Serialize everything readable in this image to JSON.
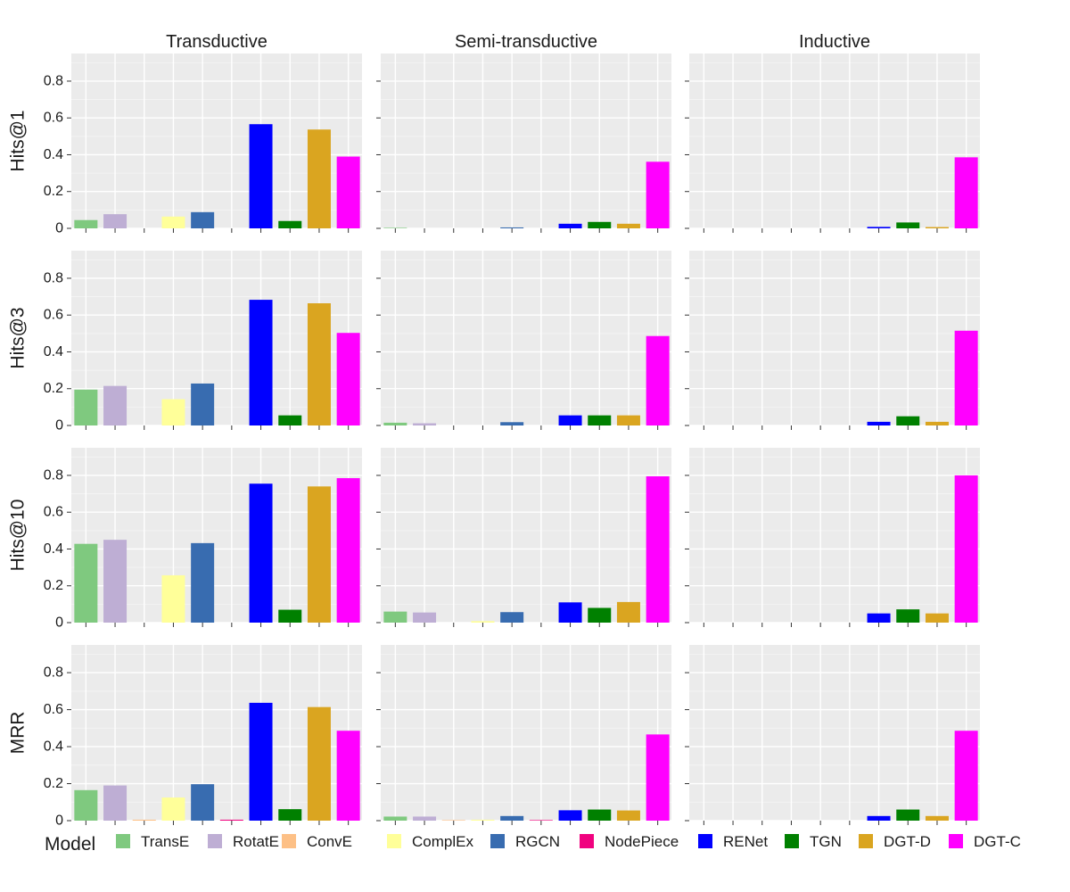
{
  "chart_data": {
    "type": "bar",
    "facet_columns": [
      "Transductive",
      "Semi-transductive",
      "Inductive"
    ],
    "facet_rows": [
      "Hits@1",
      "Hits@3",
      "Hits@10",
      "MRR"
    ],
    "ylim": [
      0,
      0.95
    ],
    "yticks": [
      0,
      0.2,
      0.4,
      0.6,
      0.8
    ],
    "ytick_labels": [
      "0",
      "0.2",
      "0.4",
      "0.6",
      "0.8"
    ],
    "grid": true,
    "x_tick_labels_shown": false,
    "legend": {
      "title": "Model",
      "placement": "bottom",
      "entries": [
        "TransE",
        "RotatE",
        "ConvE",
        "ComplEx",
        "RGCN",
        "NodePiece",
        "RENet",
        "TGN",
        "DGT-D",
        "DGT-C"
      ]
    },
    "colors": [
      "#7fc97f",
      "#beaed4",
      "#fdc086",
      "#ffff99",
      "#386cb0",
      "#f0027f",
      "#0000ff",
      "#008000",
      "#daa520",
      "#ff00ff"
    ],
    "values": {
      "Hits@1": {
        "Transductive": [
          0.045,
          0.077,
          0.0,
          0.064,
          0.088,
          0.0,
          0.566,
          0.04,
          0.537,
          0.39
        ],
        "Semi-transductive": [
          0.003,
          0.0,
          0.0,
          0.0,
          0.005,
          0.0,
          0.025,
          0.035,
          0.025,
          0.362
        ],
        "Inductive": [
          0.0,
          0.0,
          0.0,
          0.0,
          0.0,
          0.0,
          0.008,
          0.032,
          0.007,
          0.386
        ]
      },
      "Hits@3": {
        "Transductive": [
          0.195,
          0.215,
          0.0,
          0.143,
          0.228,
          0.0,
          0.683,
          0.055,
          0.664,
          0.503
        ],
        "Semi-transductive": [
          0.015,
          0.012,
          0.0,
          0.0,
          0.018,
          0.0,
          0.055,
          0.055,
          0.055,
          0.486
        ],
        "Inductive": [
          0.0,
          0.0,
          0.0,
          0.0,
          0.0,
          0.0,
          0.02,
          0.05,
          0.02,
          0.515
        ]
      },
      "Hits@10": {
        "Transductive": [
          0.428,
          0.45,
          0.0,
          0.257,
          0.432,
          0.0,
          0.755,
          0.07,
          0.74,
          0.785
        ],
        "Semi-transductive": [
          0.06,
          0.055,
          0.0,
          0.008,
          0.057,
          0.0,
          0.11,
          0.08,
          0.112,
          0.795
        ],
        "Inductive": [
          0.0,
          0.0,
          0.0,
          0.0,
          0.0,
          0.0,
          0.05,
          0.072,
          0.05,
          0.8
        ]
      },
      "MRR": {
        "Transductive": [
          0.165,
          0.19,
          0.005,
          0.125,
          0.197,
          0.005,
          0.637,
          0.062,
          0.614,
          0.486
        ],
        "Semi-transductive": [
          0.022,
          0.022,
          0.003,
          0.005,
          0.025,
          0.003,
          0.056,
          0.06,
          0.055,
          0.466
        ],
        "Inductive": [
          0.0,
          0.0,
          0.0,
          0.0,
          0.0,
          0.0,
          0.025,
          0.06,
          0.025,
          0.486
        ]
      }
    }
  }
}
